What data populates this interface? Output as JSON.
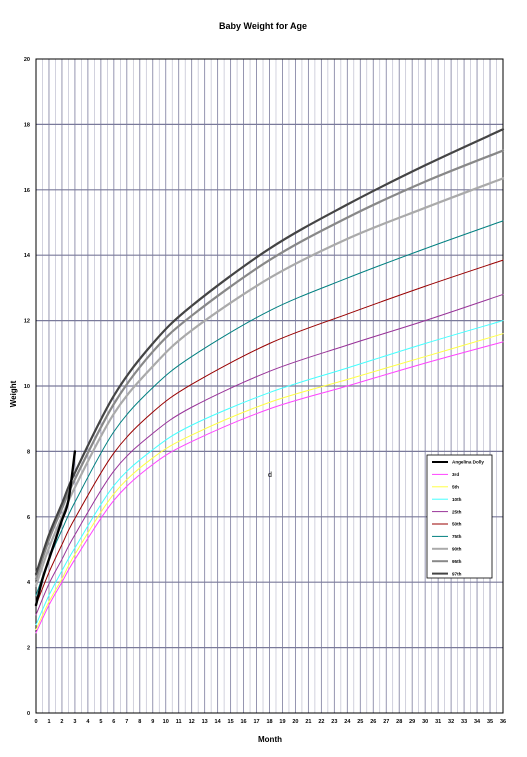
{
  "chart_data": {
    "type": "line",
    "title": "Baby Weight for Age",
    "xlabel": "Month",
    "ylabel": "Weight",
    "xlim": [
      0,
      36
    ],
    "ylim": [
      0,
      20
    ],
    "x_ticks": [
      "0",
      "1",
      "2",
      "3",
      "4",
      "5",
      "6",
      "7",
      "8",
      "9",
      "10",
      "11",
      "12",
      "13",
      "14",
      "15",
      "16",
      "17",
      "18",
      "19",
      "20",
      "21",
      "22",
      "23",
      "24",
      "25",
      "26",
      "27",
      "28",
      "29",
      "30",
      "31",
      "32",
      "33",
      "34",
      "35",
      "36"
    ],
    "y_ticks": [
      "0",
      "2",
      "4",
      "6",
      "8",
      "10",
      "12",
      "14",
      "16",
      "18",
      "20"
    ],
    "grid": true,
    "legend_position": "bottom-right",
    "annotation": "d",
    "series": [
      {
        "name": "Angelina Dolly",
        "color": "#000000",
        "width": 2.4,
        "x": [
          0,
          0.5,
          1,
          1.5,
          2,
          2.5,
          3
        ],
        "values": [
          3.3,
          4.1,
          4.7,
          5.3,
          5.9,
          6.5,
          8.0
        ]
      },
      {
        "name": "3rd",
        "color": "#ff44ff",
        "width": 1,
        "x": [
          0,
          1,
          2,
          3,
          6,
          9,
          12,
          18,
          24,
          30,
          36
        ],
        "values": [
          2.45,
          3.3,
          4.0,
          4.7,
          6.5,
          7.6,
          8.3,
          9.3,
          10.0,
          10.7,
          11.35
        ]
      },
      {
        "name": "5th",
        "color": "#ffff44",
        "width": 1,
        "x": [
          0,
          1,
          2,
          3,
          6,
          9,
          12,
          18,
          24,
          30,
          36
        ],
        "values": [
          2.55,
          3.4,
          4.1,
          4.85,
          6.7,
          7.8,
          8.5,
          9.5,
          10.2,
          10.9,
          11.6
        ]
      },
      {
        "name": "10th",
        "color": "#44ffff",
        "width": 1,
        "x": [
          0,
          1,
          2,
          3,
          6,
          9,
          12,
          18,
          24,
          30,
          36
        ],
        "values": [
          2.7,
          3.6,
          4.35,
          5.05,
          6.95,
          8.05,
          8.8,
          9.8,
          10.55,
          11.3,
          12.0
        ]
      },
      {
        "name": "25th",
        "color": "#993399",
        "width": 1,
        "x": [
          0,
          1,
          2,
          3,
          6,
          9,
          12,
          18,
          24,
          30,
          36
        ],
        "values": [
          3.0,
          3.95,
          4.7,
          5.45,
          7.4,
          8.55,
          9.35,
          10.45,
          11.25,
          12.0,
          12.8
        ]
      },
      {
        "name": "50th",
        "color": "#990000",
        "width": 1,
        "x": [
          0,
          1,
          2,
          3,
          6,
          9,
          12,
          18,
          24,
          30,
          36
        ],
        "values": [
          3.3,
          4.3,
          5.15,
          5.95,
          7.95,
          9.2,
          10.05,
          11.3,
          12.2,
          13.05,
          13.85
        ]
      },
      {
        "name": "75th",
        "color": "#008080",
        "width": 1,
        "x": [
          0,
          1,
          2,
          3,
          6,
          9,
          12,
          18,
          24,
          30,
          36
        ],
        "values": [
          3.6,
          4.7,
          5.6,
          6.45,
          8.6,
          9.95,
          10.9,
          12.3,
          13.3,
          14.2,
          15.05
        ]
      },
      {
        "name": "90th",
        "color": "#aaaaaa",
        "width": 2.2,
        "x": [
          0,
          1,
          2,
          3,
          6,
          9,
          12,
          18,
          24,
          30,
          36
        ],
        "values": [
          3.9,
          5.05,
          6.0,
          6.9,
          9.15,
          10.6,
          11.7,
          13.3,
          14.5,
          15.45,
          16.35
        ]
      },
      {
        "name": "95th",
        "color": "#888888",
        "width": 2.2,
        "x": [
          0,
          1,
          2,
          3,
          6,
          9,
          12,
          18,
          24,
          30,
          36
        ],
        "values": [
          4.1,
          5.3,
          6.25,
          7.15,
          9.45,
          11.05,
          12.15,
          13.85,
          15.15,
          16.25,
          17.2
        ]
      },
      {
        "name": "97th",
        "color": "#444444",
        "width": 2.2,
        "x": [
          0,
          1,
          2,
          3,
          6,
          9,
          12,
          18,
          24,
          30,
          36
        ],
        "values": [
          4.25,
          5.45,
          6.4,
          7.35,
          9.7,
          11.3,
          12.45,
          14.2,
          15.55,
          16.75,
          17.85
        ]
      }
    ]
  }
}
